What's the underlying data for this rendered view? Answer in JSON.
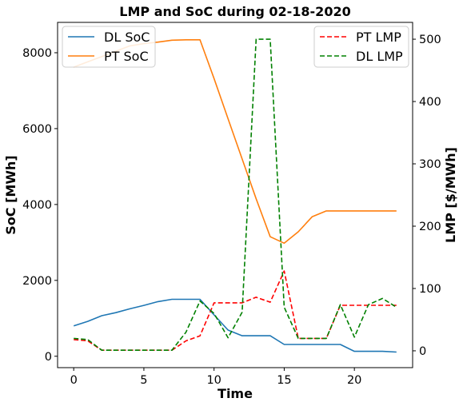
{
  "chart_data": {
    "type": "line",
    "title": "LMP and SoC during 02-18-2020",
    "xlabel": "Time",
    "ylabel_left": "SoC [MWh]",
    "ylabel_right": "LMP [$/MWh]",
    "xlim": [
      -1.15,
      24.15
    ],
    "ylim_left": [
      -300,
      8800
    ],
    "ylim_right": [
      -27,
      527
    ],
    "x_ticks": [
      0,
      5,
      10,
      15,
      20
    ],
    "y_left_ticks": [
      0,
      2000,
      4000,
      6000,
      8000
    ],
    "y_right_ticks": [
      0,
      100,
      200,
      300,
      400,
      500
    ],
    "grid": false,
    "legend_left_placement": "top-left",
    "legend_right_placement": "top-right",
    "x": [
      0,
      1,
      2,
      3,
      4,
      5,
      6,
      7,
      8,
      9,
      10,
      11,
      12,
      13,
      14,
      15,
      16,
      17,
      18,
      19,
      20,
      21,
      22,
      23
    ],
    "series_left": [
      {
        "name": "DL SoC",
        "color": "#1f77b4",
        "dash": "solid",
        "values": [
          800,
          920,
          1070,
          1150,
          1250,
          1340,
          1440,
          1500,
          1500,
          1500,
          1090,
          690,
          540,
          540,
          540,
          310,
          310,
          310,
          310,
          310,
          130,
          130,
          130,
          110
        ]
      },
      {
        "name": "PT SoC",
        "color": "#ff7f0e",
        "dash": "solid",
        "values": [
          7620,
          7760,
          7900,
          8040,
          8180,
          8240,
          8280,
          8330,
          8340,
          8340,
          7320,
          6260,
          5200,
          4150,
          3150,
          2980,
          3280,
          3680,
          3830,
          3830,
          3830,
          3830,
          3830,
          3830
        ]
      }
    ],
    "series_right": [
      {
        "name": "PT LMP",
        "color": "#ff0000",
        "dash": "dashed",
        "values": [
          18,
          16,
          1,
          1,
          1,
          1,
          1,
          1,
          16,
          24,
          77,
          77,
          77,
          86,
          78,
          128,
          20,
          20,
          20,
          73,
          73,
          73,
          73,
          73
        ]
      },
      {
        "name": "DL LMP",
        "color": "#008000",
        "dash": "dashed",
        "values": [
          20,
          18,
          1,
          1,
          1,
          1,
          1,
          1,
          30,
          80,
          60,
          21,
          62,
          500,
          500,
          70,
          20,
          20,
          20,
          74,
          22,
          74,
          84,
          70
        ]
      }
    ]
  }
}
